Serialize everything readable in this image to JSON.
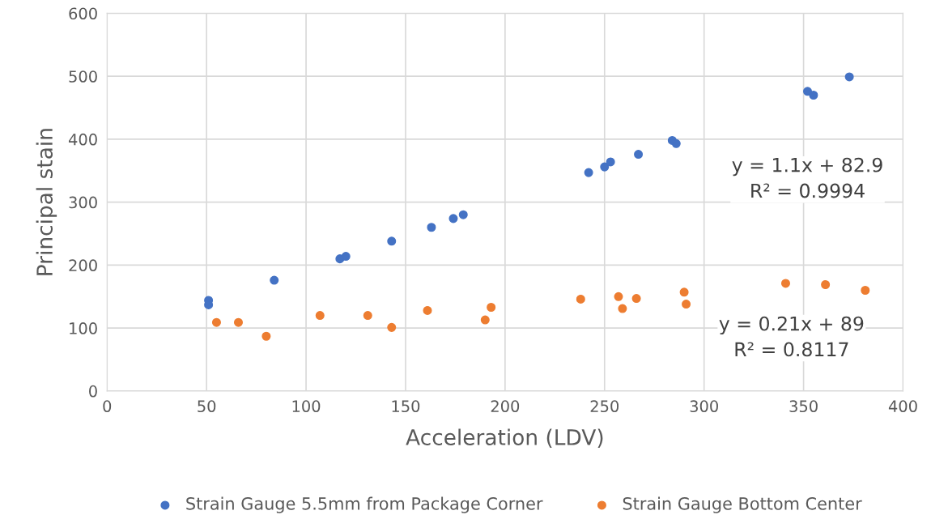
{
  "chart_data": {
    "type": "scatter",
    "xlabel": "Acceleration (LDV)",
    "ylabel": "Principal stain",
    "xlim": [
      0,
      400
    ],
    "xticks": [
      0,
      50,
      100,
      150,
      200,
      250,
      300,
      350,
      400
    ],
    "ylim": [
      0,
      600
    ],
    "yticks": [
      0,
      100,
      200,
      300,
      400,
      500,
      600
    ],
    "grid": true,
    "legend": "bottom",
    "marker": "circle",
    "series": [
      {
        "name": "Strain Gauge 5.5mm from Package Corner",
        "color": "#4472c4",
        "x": [
          51,
          51,
          84,
          117,
          120,
          143,
          163,
          174,
          179,
          242,
          250,
          253,
          267,
          284,
          286,
          352,
          355,
          373
        ],
        "values": [
          144,
          137,
          176,
          210,
          214,
          238,
          260,
          274,
          280,
          347,
          356,
          364,
          376,
          398,
          393,
          476,
          470,
          499
        ]
      },
      {
        "name": "Strain Gauge Bottom Center",
        "color": "#ed7d31",
        "x": [
          55,
          66,
          80,
          107,
          131,
          143,
          161,
          190,
          193,
          238,
          257,
          259,
          266,
          290,
          291,
          341,
          361,
          381
        ],
        "values": [
          109,
          109,
          87,
          120,
          120,
          101,
          128,
          113,
          133,
          146,
          150,
          131,
          147,
          157,
          138,
          171,
          169,
          160
        ]
      }
    ],
    "annotations": [
      "y = 1.1x + 82.9\nR² = 0.9994",
      "y = 0.21x + 89\nR² = 0.8117"
    ]
  }
}
